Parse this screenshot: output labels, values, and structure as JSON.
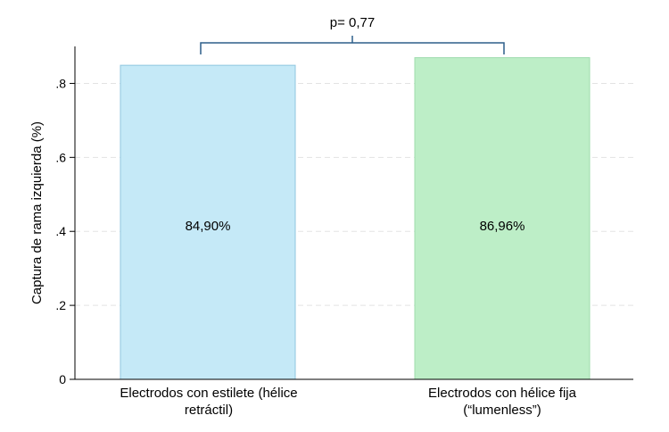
{
  "chart_data": {
    "type": "bar",
    "categories": [
      [
        "Electrodos con estilete (hélice",
        "retráctil)"
      ],
      [
        "Electrodos con hélice fija",
        "(“lumenless”)"
      ]
    ],
    "values": [
      0.849,
      0.8696
    ],
    "value_labels": [
      "84,90%",
      "86,96%"
    ],
    "ylabel": "Captura de rama izquierda (%)",
    "yticks": [
      0,
      0.2,
      0.4,
      0.6,
      0.8
    ],
    "ytick_labels": [
      "0",
      ".2",
      ".4",
      ".6",
      ".8"
    ],
    "ylim": [
      0,
      0.9
    ],
    "grid": true,
    "annotation": "p= 0,77",
    "colors": {
      "bars": [
        "#c5e9f7",
        "#bdeec7"
      ],
      "bar_edges": [
        "#8fc6df",
        "#9fdcae"
      ],
      "bracket": "#2d5f8a",
      "axis": "#000000",
      "grid": "#e3e3e3"
    }
  }
}
